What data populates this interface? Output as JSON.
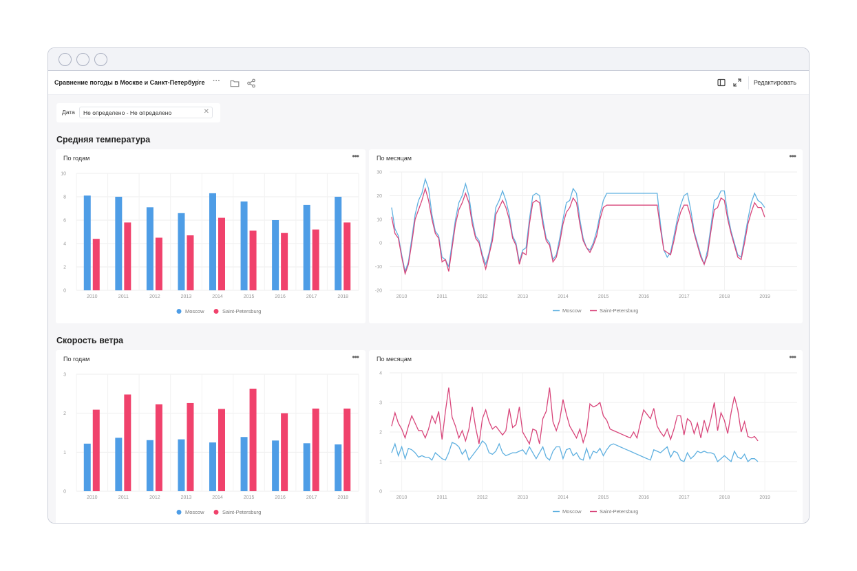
{
  "window": {
    "controls": [
      "close",
      "minimize",
      "maximize"
    ]
  },
  "toolbar": {
    "title": "Сравнение погоды в Москве и Санкт-Петербурге",
    "favorite_icon": "star-icon",
    "more_icon": "more-icon",
    "folder_icon": "folder-icon",
    "share_icon": "share-icon",
    "toc_icon": "panel-icon",
    "fullscreen_icon": "fullscreen-icon",
    "edit_label": "Редактировать"
  },
  "filter": {
    "label": "Дата",
    "value": "Не определено - Не определено",
    "clear_icon": "close-icon"
  },
  "sections": {
    "temperature": "Средняя температура",
    "wind": "Скорость ветра"
  },
  "panels": {
    "temp_yearly_title": "По годам",
    "temp_monthly_title": "По месяцам",
    "wind_yearly_title": "По годам",
    "wind_monthly_title": "По месяцам",
    "menu_icon": "more-icon"
  },
  "colors": {
    "moscow": "#4e9de6",
    "spb": "#f0426c",
    "moscow_line": "#5fb0e0",
    "spb_line": "#d8457a"
  },
  "chart_data": [
    {
      "id": "temp_yearly",
      "type": "bar",
      "categories": [
        "2010",
        "2011",
        "2012",
        "2013",
        "2014",
        "2015",
        "2016",
        "2017",
        "2018"
      ],
      "series": [
        {
          "name": "Moscow",
          "values": [
            8.1,
            8.0,
            7.1,
            6.6,
            8.3,
            7.6,
            6.0,
            7.3,
            8.0
          ]
        },
        {
          "name": "Saint-Petersburg",
          "values": [
            4.4,
            5.8,
            4.5,
            4.7,
            6.2,
            5.1,
            4.9,
            5.2,
            5.8
          ]
        }
      ],
      "yticks": [
        0,
        2,
        4,
        6,
        8,
        10
      ],
      "ylim": [
        0,
        10
      ],
      "legend": "bottom"
    },
    {
      "id": "temp_monthly",
      "type": "line",
      "xticks": [
        "2010",
        "2011",
        "2012",
        "2013",
        "2014",
        "2015",
        "2016",
        "2017",
        "2018",
        "2019"
      ],
      "x_start": 2009.75,
      "x_step": 0.0833,
      "yticks": [
        -20,
        -10,
        0,
        10,
        20,
        30
      ],
      "ylim": [
        -20,
        30
      ],
      "legend": "bottom",
      "series": [
        {
          "name": "Moscow",
          "values": [
            15,
            6,
            3,
            -5,
            -12,
            -8,
            2,
            12,
            18,
            21,
            27,
            23,
            12,
            5,
            3,
            -6,
            -7,
            -10,
            0,
            10,
            17,
            20,
            25,
            20,
            10,
            3,
            1,
            -5,
            -9,
            -4,
            3,
            15,
            18,
            22,
            18,
            12,
            3,
            0,
            -8,
            -3,
            -2,
            10,
            20,
            21,
            20,
            10,
            2,
            0,
            -7,
            -5,
            2,
            10,
            17,
            18,
            23,
            21,
            10,
            2,
            -2,
            -3,
            0,
            5,
            12,
            18,
            21,
            21,
            21,
            21,
            21,
            21,
            21,
            21,
            21,
            21,
            21,
            21,
            21,
            21,
            21,
            21,
            8,
            -3,
            -6,
            -4,
            3,
            10,
            16,
            20,
            21,
            14,
            5,
            0,
            -5,
            -9,
            -3,
            7,
            18,
            19,
            22,
            22,
            12,
            5,
            0,
            -5,
            -6,
            2,
            10,
            17,
            21,
            18,
            17,
            15
          ]
        },
        {
          "name": "Saint-Petersburg",
          "values": [
            11,
            4,
            2,
            -6,
            -13,
            -9,
            0,
            10,
            14,
            18,
            23,
            18,
            10,
            4,
            2,
            -8,
            -7,
            -12,
            -2,
            8,
            14,
            17,
            21,
            17,
            8,
            2,
            0,
            -6,
            -11,
            -5,
            1,
            12,
            15,
            18,
            15,
            10,
            2,
            -1,
            -9,
            -4,
            -5,
            8,
            17,
            18,
            17,
            8,
            1,
            -1,
            -8,
            -6,
            0,
            8,
            13,
            15,
            19,
            17,
            8,
            1,
            -2,
            -4,
            -1,
            3,
            10,
            15,
            16,
            16,
            16,
            16,
            16,
            16,
            16,
            16,
            16,
            16,
            16,
            16,
            16,
            16,
            16,
            16,
            6,
            -3,
            -4,
            -5,
            1,
            8,
            13,
            16,
            16,
            11,
            4,
            -1,
            -6,
            -9,
            -5,
            5,
            14,
            15,
            19,
            18,
            10,
            4,
            -1,
            -6,
            -7,
            0,
            8,
            13,
            17,
            15,
            15,
            11
          ]
        }
      ]
    },
    {
      "id": "wind_yearly",
      "type": "bar",
      "categories": [
        "2010",
        "2011",
        "2012",
        "2013",
        "2014",
        "2015",
        "2016",
        "2017",
        "2018"
      ],
      "series": [
        {
          "name": "Moscow",
          "values": [
            1.22,
            1.37,
            1.31,
            1.33,
            1.25,
            1.39,
            1.3,
            1.23,
            1.2
          ]
        },
        {
          "name": "Saint-Petersburg",
          "values": [
            2.09,
            2.48,
            2.23,
            2.26,
            2.11,
            2.63,
            2.0,
            2.12,
            2.12
          ]
        }
      ],
      "yticks": [
        0,
        1,
        2,
        3
      ],
      "ylim": [
        0,
        3
      ],
      "legend": "bottom"
    },
    {
      "id": "wind_monthly",
      "type": "line",
      "xticks": [
        "2010",
        "2011",
        "2012",
        "2013",
        "2014",
        "2015",
        "2016",
        "2017",
        "2018",
        "2019"
      ],
      "x_start": 2009.75,
      "x_step": 0.0833,
      "yticks": [
        0,
        1,
        2,
        3,
        4
      ],
      "ylim": [
        0,
        4
      ],
      "legend": "bottom",
      "series": [
        {
          "name": "Moscow",
          "values": [
            1.3,
            1.6,
            1.2,
            1.5,
            1.1,
            1.45,
            1.4,
            1.3,
            1.15,
            1.2,
            1.15,
            1.15,
            1.05,
            1.3,
            1.2,
            1.1,
            1.05,
            1.3,
            1.65,
            1.6,
            1.5,
            1.25,
            1.4,
            1.05,
            1.2,
            1.35,
            1.5,
            1.7,
            1.6,
            1.3,
            1.25,
            1.35,
            1.6,
            1.3,
            1.2,
            1.25,
            1.3,
            1.3,
            1.35,
            1.4,
            1.25,
            1.5,
            1.3,
            1.1,
            1.3,
            1.5,
            1.15,
            1.05,
            1.35,
            1.5,
            1.5,
            1.1,
            1.4,
            1.45,
            1.2,
            1.3,
            1.1,
            1.05,
            1.45,
            1.1,
            1.35,
            1.3,
            1.45,
            1.2,
            1.4,
            1.55,
            1.6,
            1.55,
            1.5,
            1.45,
            1.4,
            1.35,
            1.3,
            1.25,
            1.2,
            1.15,
            1.1,
            1.05,
            1.4,
            1.35,
            1.3,
            1.4,
            1.5,
            1.15,
            1.35,
            1.3,
            1.05,
            1.0,
            1.3,
            1.1,
            1.2,
            1.35,
            1.3,
            1.35,
            1.3,
            1.3,
            1.25,
            1.0,
            1.1,
            1.2,
            1.1,
            1.0,
            1.35,
            1.15,
            1.1,
            1.25,
            1.0,
            1.1,
            1.1,
            1.0
          ]
        },
        {
          "name": "Saint-Petersburg",
          "values": [
            2.2,
            2.65,
            2.3,
            2.1,
            1.8,
            2.2,
            2.55,
            2.3,
            2.05,
            2.05,
            1.8,
            2.1,
            2.55,
            2.3,
            2.7,
            1.75,
            2.7,
            3.5,
            2.5,
            2.2,
            1.8,
            2.05,
            1.7,
            2.1,
            2.85,
            2.15,
            1.6,
            2.45,
            2.75,
            2.35,
            2.1,
            2.2,
            2.05,
            1.9,
            2.05,
            2.8,
            2.15,
            2.25,
            2.85,
            2.0,
            1.8,
            1.6,
            2.1,
            2.05,
            1.6,
            2.45,
            2.7,
            3.5,
            2.35,
            2.05,
            2.4,
            3.1,
            2.6,
            2.2,
            2.0,
            1.8,
            2.1,
            1.65,
            2.0,
            2.95,
            2.85,
            2.9,
            3.0,
            2.55,
            2.4,
            2.1,
            2.05,
            2.0,
            1.95,
            1.9,
            1.85,
            1.8,
            2.0,
            1.8,
            2.3,
            2.75,
            2.6,
            2.45,
            2.8,
            2.2,
            2.0,
            1.85,
            2.1,
            1.75,
            2.1,
            2.55,
            2.55,
            1.9,
            2.45,
            2.35,
            1.95,
            2.3,
            1.8,
            2.4,
            2.0,
            2.45,
            3.0,
            2.05,
            2.65,
            2.4,
            1.95,
            2.65,
            3.2,
            2.75,
            2.0,
            2.35,
            1.85,
            1.8,
            1.85,
            1.7
          ]
        }
      ]
    }
  ]
}
